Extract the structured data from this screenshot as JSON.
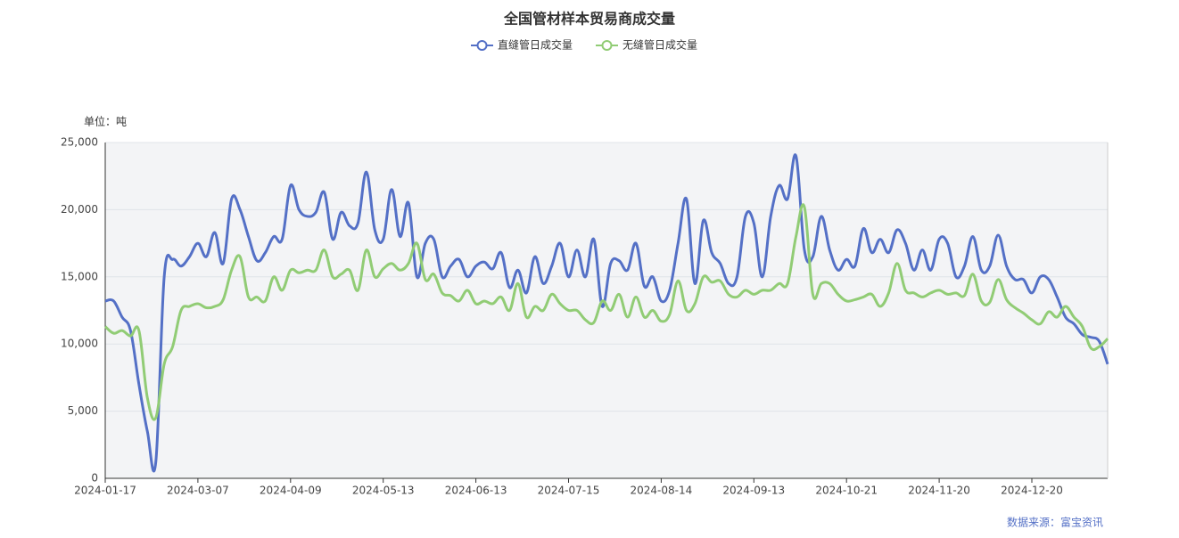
{
  "chart_data": {
    "type": "line",
    "title": "全国管材样本贸易商成交量",
    "unit_label": "单位：吨",
    "source": "数据来源：富宝资讯",
    "categories": [
      "2024-01-17",
      null,
      null,
      null,
      null,
      null,
      null,
      null,
      null,
      null,
      null,
      "2024-03-07",
      null,
      null,
      null,
      null,
      null,
      null,
      null,
      null,
      null,
      null,
      "2024-04-09",
      null,
      null,
      null,
      null,
      null,
      null,
      null,
      null,
      null,
      null,
      "2024-05-13",
      null,
      null,
      null,
      null,
      null,
      null,
      null,
      null,
      null,
      null,
      "2024-06-13",
      null,
      null,
      null,
      null,
      null,
      null,
      null,
      null,
      null,
      null,
      "2024-07-15",
      null,
      null,
      null,
      null,
      null,
      null,
      null,
      null,
      null,
      null,
      "2024-08-14",
      null,
      null,
      null,
      null,
      null,
      null,
      null,
      null,
      null,
      null,
      "2024-09-13",
      null,
      null,
      null,
      null,
      null,
      null,
      null,
      null,
      null,
      null,
      "2024-10-21",
      null,
      null,
      null,
      null,
      null,
      null,
      null,
      null,
      null,
      null,
      "2024-11-20",
      null,
      null,
      null,
      null,
      null,
      null,
      null,
      null,
      null,
      null,
      "2024-12-20",
      null,
      null,
      null,
      null,
      null,
      null,
      null,
      null,
      null
    ],
    "series": [
      {
        "name": "直缝管日成交量",
        "color": "#5470c6",
        "values": [
          13200,
          13200,
          12000,
          11000,
          7000,
          3500,
          1200,
          15000,
          16300,
          15800,
          16500,
          17500,
          16500,
          18300,
          16000,
          20800,
          20000,
          18000,
          16200,
          16800,
          18000,
          17800,
          21800,
          20000,
          19500,
          19800,
          21300,
          17800,
          19800,
          18800,
          19000,
          22800,
          18500,
          17800,
          21500,
          18000,
          20500,
          15000,
          17500,
          17800,
          15000,
          15800,
          16300,
          15000,
          15800,
          16100,
          15600,
          16800,
          14200,
          15500,
          13800,
          16500,
          14500,
          15800,
          17500,
          15000,
          17000,
          15000,
          17800,
          12800,
          16000,
          16200,
          15500,
          17500,
          14300,
          15000,
          13200,
          14000,
          17500,
          20800,
          14500,
          19200,
          16800,
          16000,
          14500,
          15000,
          19500,
          19000,
          15000,
          19500,
          21800,
          20800,
          24000,
          17000,
          16500,
          19500,
          17000,
          15500,
          16300,
          15800,
          18600,
          16800,
          17800,
          16800,
          18500,
          17500,
          15500,
          17000,
          15500,
          17800,
          17500,
          15000,
          15800,
          18000,
          15500,
          15800,
          18100,
          15800,
          14800,
          14800,
          13800,
          15000,
          14800,
          13500,
          12000,
          11500,
          10700,
          10500,
          10200,
          8500
        ]
      },
      {
        "name": "无缝管日成交量",
        "color": "#91cc75",
        "values": [
          11300,
          10800,
          11000,
          10600,
          11000,
          6000,
          4500,
          8500,
          9800,
          12500,
          12800,
          13000,
          12700,
          12800,
          13300,
          15500,
          16500,
          13500,
          13500,
          13200,
          15000,
          14000,
          15500,
          15300,
          15500,
          15500,
          17000,
          15000,
          15200,
          15500,
          14000,
          17000,
          15000,
          15600,
          16000,
          15500,
          16000,
          17500,
          14800,
          15200,
          13800,
          13600,
          13200,
          14000,
          13000,
          13200,
          13000,
          13500,
          12500,
          14500,
          12000,
          12800,
          12500,
          13700,
          13000,
          12500,
          12500,
          11800,
          11600,
          13200,
          12500,
          13700,
          12000,
          13500,
          12000,
          12500,
          11700,
          12200,
          14700,
          12500,
          13000,
          15000,
          14600,
          14700,
          13700,
          13500,
          14000,
          13700,
          14000,
          14000,
          14500,
          14500,
          18000,
          20200,
          13700,
          14500,
          14500,
          13700,
          13200,
          13300,
          13500,
          13700,
          12800,
          13800,
          16000,
          14000,
          13800,
          13500,
          13800,
          14000,
          13700,
          13800,
          13600,
          15200,
          13200,
          13100,
          14800,
          13300,
          12700,
          12300,
          11800,
          11500,
          12400,
          12000,
          12800,
          12000,
          11300,
          9700,
          9800,
          10400
        ]
      }
    ],
    "ylim": [
      0,
      25000
    ],
    "yticks": [
      0,
      {
        "value": 5000,
        "label": "5,000"
      },
      {
        "value": 10000,
        "label": "10,000"
      },
      {
        "value": 15000,
        "label": "15,000"
      },
      {
        "value": 20000,
        "label": "20,000"
      },
      {
        "value": 25000,
        "label": "25,000"
      }
    ],
    "grid": true
  }
}
